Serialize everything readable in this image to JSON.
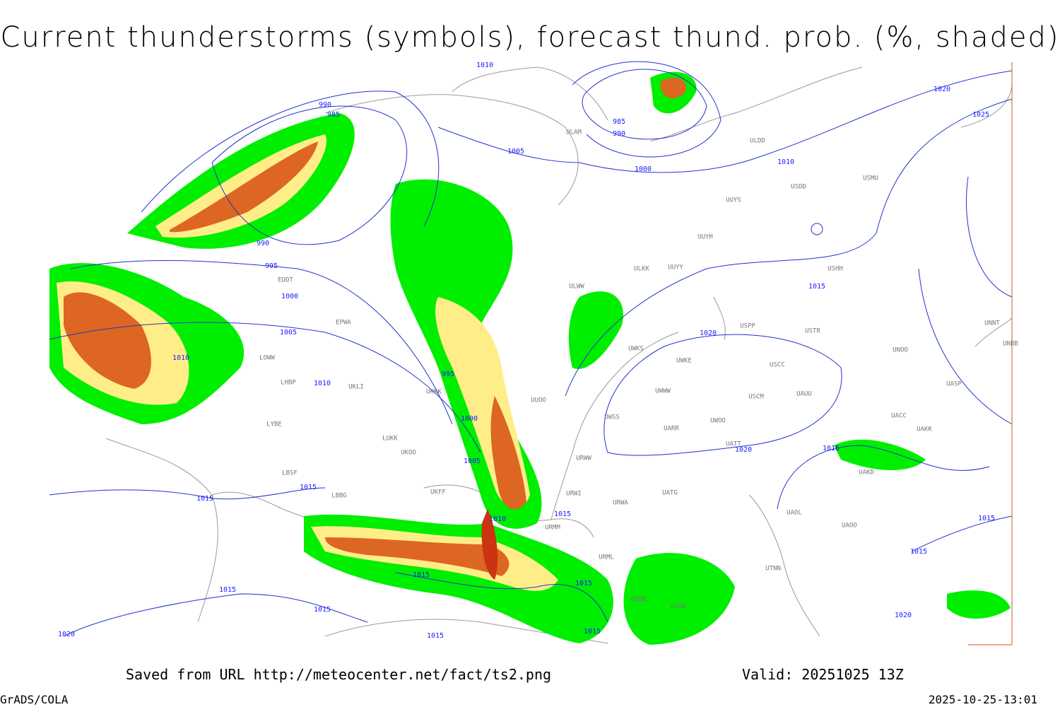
{
  "header": {
    "title": "Current thunderstorms (symbols), forecast thund. prob. (%, shaded)"
  },
  "map": {
    "isobar_labels": [
      "1010",
      "990",
      "985",
      "1005",
      "985",
      "990",
      "1000",
      "1010",
      "1020",
      "1025",
      "990",
      "995",
      "1000",
      "1005",
      "1010",
      "1010",
      "995",
      "1000",
      "1005",
      "1015",
      "1020",
      "1020",
      "1015",
      "1015",
      "1015",
      "1015",
      "1010",
      "1015",
      "1015",
      "1015",
      "1015",
      "1015",
      "1015",
      "1020",
      "1020",
      "1015",
      "1015"
    ],
    "stations": [
      "EDDT",
      "EPWA",
      "LOWW",
      "LHBP",
      "LYBE",
      "LBSF",
      "LBBG",
      "UKKK",
      "UKLI",
      "LUKK",
      "UKOO",
      "UKFF",
      "ULDD",
      "ULAM",
      "USDD",
      "USMU",
      "UUYS",
      "UUYH",
      "ULKK",
      "UUYY",
      "ULWW",
      "USHH",
      "USPP",
      "USTR",
      "UWKS",
      "UWKE",
      "USCC",
      "UWWW",
      "USCM",
      "UAUU",
      "UARR",
      "UWOO",
      "UATT",
      "UATG",
      "UAKD",
      "UACC",
      "UAKK",
      "UASP",
      "UNOO",
      "UNNT",
      "UNBB",
      "UAOO",
      "UAOL",
      "UTNN",
      "UTAK",
      "UBBB",
      "URML",
      "URWA",
      "URWI",
      "URWW",
      "UWSS",
      "URMM",
      "UUOO"
    ]
  },
  "footer": {
    "source": "Saved from URL http://meteocenter.net/fact/ts2.png",
    "valid": "Valid: 20251025 13Z",
    "software": "GrADS/COLA",
    "timestamp": "2025-10-25-13:01"
  }
}
